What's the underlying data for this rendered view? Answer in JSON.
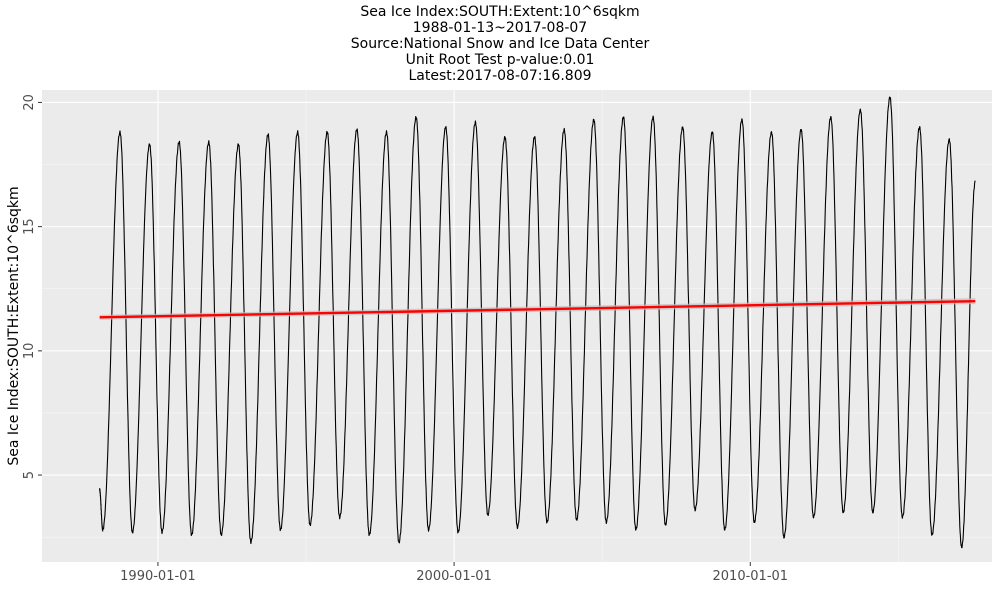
{
  "chart_data": {
    "type": "line",
    "title_lines": [
      "Sea Ice Index:SOUTH:Extent:10^6sqkm",
      "1988-01-13~2017-08-07",
      "Source:National Snow and Ice Data Center",
      "Unit Root Test p-value:0.01",
      "Latest:2017-08-07:16.809"
    ],
    "xlabel": "",
    "ylabel": "Sea Ice Index:SOUTH:Extent:10^6sqkm",
    "x_range": [
      "1986-02-01",
      "2018-03-01"
    ],
    "x_ticks": [
      "1990-01-01",
      "2000-01-01",
      "2010-01-01"
    ],
    "ylim": [
      1.5,
      20.5
    ],
    "y_ticks": [
      "5",
      "10",
      "15",
      "20"
    ],
    "grid": true,
    "legend": "none",
    "series": [
      {
        "kind": "seasonal",
        "color": "#000000",
        "start": "1988-01-13",
        "end": "2017-08-07",
        "minima": [
          [
            "1988-02-20",
            2.8
          ],
          [
            "1989-02-20",
            2.7
          ],
          [
            "1990-02-20",
            2.7
          ],
          [
            "1991-02-20",
            2.6
          ],
          [
            "1992-02-20",
            2.6
          ],
          [
            "1993-02-20",
            2.3
          ],
          [
            "1994-02-20",
            2.8
          ],
          [
            "1995-02-20",
            3.0
          ],
          [
            "1996-02-20",
            3.3
          ],
          [
            "1997-02-20",
            2.6
          ],
          [
            "1998-02-20",
            2.3
          ],
          [
            "1999-02-20",
            2.8
          ],
          [
            "2000-02-20",
            2.7
          ],
          [
            "2001-02-20",
            3.4
          ],
          [
            "2002-02-20",
            2.9
          ],
          [
            "2003-02-20",
            3.1
          ],
          [
            "2004-02-20",
            3.2
          ],
          [
            "2005-02-20",
            3.1
          ],
          [
            "2006-02-20",
            2.8
          ],
          [
            "2007-02-20",
            3.0
          ],
          [
            "2008-02-20",
            3.6
          ],
          [
            "2009-02-20",
            2.8
          ],
          [
            "2010-02-20",
            3.1
          ],
          [
            "2011-02-20",
            2.5
          ],
          [
            "2012-02-20",
            3.3
          ],
          [
            "2013-02-20",
            3.5
          ],
          [
            "2014-02-20",
            3.5
          ],
          [
            "2015-02-20",
            3.3
          ],
          [
            "2016-02-20",
            2.6
          ],
          [
            "2017-02-20",
            2.1
          ]
        ],
        "maxima": [
          [
            "1988-09-20",
            18.8
          ],
          [
            "1989-09-20",
            18.3
          ],
          [
            "1990-09-20",
            18.4
          ],
          [
            "1991-09-20",
            18.4
          ],
          [
            "1992-09-20",
            18.3
          ],
          [
            "1993-09-20",
            18.7
          ],
          [
            "1994-09-20",
            18.8
          ],
          [
            "1995-09-20",
            18.8
          ],
          [
            "1996-09-20",
            18.9
          ],
          [
            "1997-09-20",
            18.8
          ],
          [
            "1998-09-20",
            19.4
          ],
          [
            "1999-09-20",
            19.0
          ],
          [
            "2000-09-20",
            19.2
          ],
          [
            "2001-09-20",
            18.6
          ],
          [
            "2002-09-20",
            18.6
          ],
          [
            "2003-09-20",
            18.9
          ],
          [
            "2004-09-20",
            19.3
          ],
          [
            "2005-09-20",
            19.4
          ],
          [
            "2006-09-20",
            19.4
          ],
          [
            "2007-09-20",
            19.0
          ],
          [
            "2008-09-20",
            18.8
          ],
          [
            "2009-09-20",
            19.3
          ],
          [
            "2010-09-20",
            18.8
          ],
          [
            "2011-09-20",
            18.9
          ],
          [
            "2012-09-20",
            19.4
          ],
          [
            "2013-09-20",
            19.7
          ],
          [
            "2014-09-20",
            20.2
          ],
          [
            "2015-09-20",
            19.0
          ],
          [
            "2016-09-20",
            18.5
          ]
        ],
        "last": [
          "2017-08-07",
          16.809
        ]
      },
      {
        "kind": "trend",
        "color": "#ff0000",
        "band_color": "#bdbdbd",
        "x": [
          "1988-01-13",
          "2017-08-07"
        ],
        "y": [
          11.35,
          12.0
        ],
        "band": [
          [
            11.25,
            11.45
          ],
          [
            11.88,
            12.12
          ]
        ]
      }
    ]
  }
}
